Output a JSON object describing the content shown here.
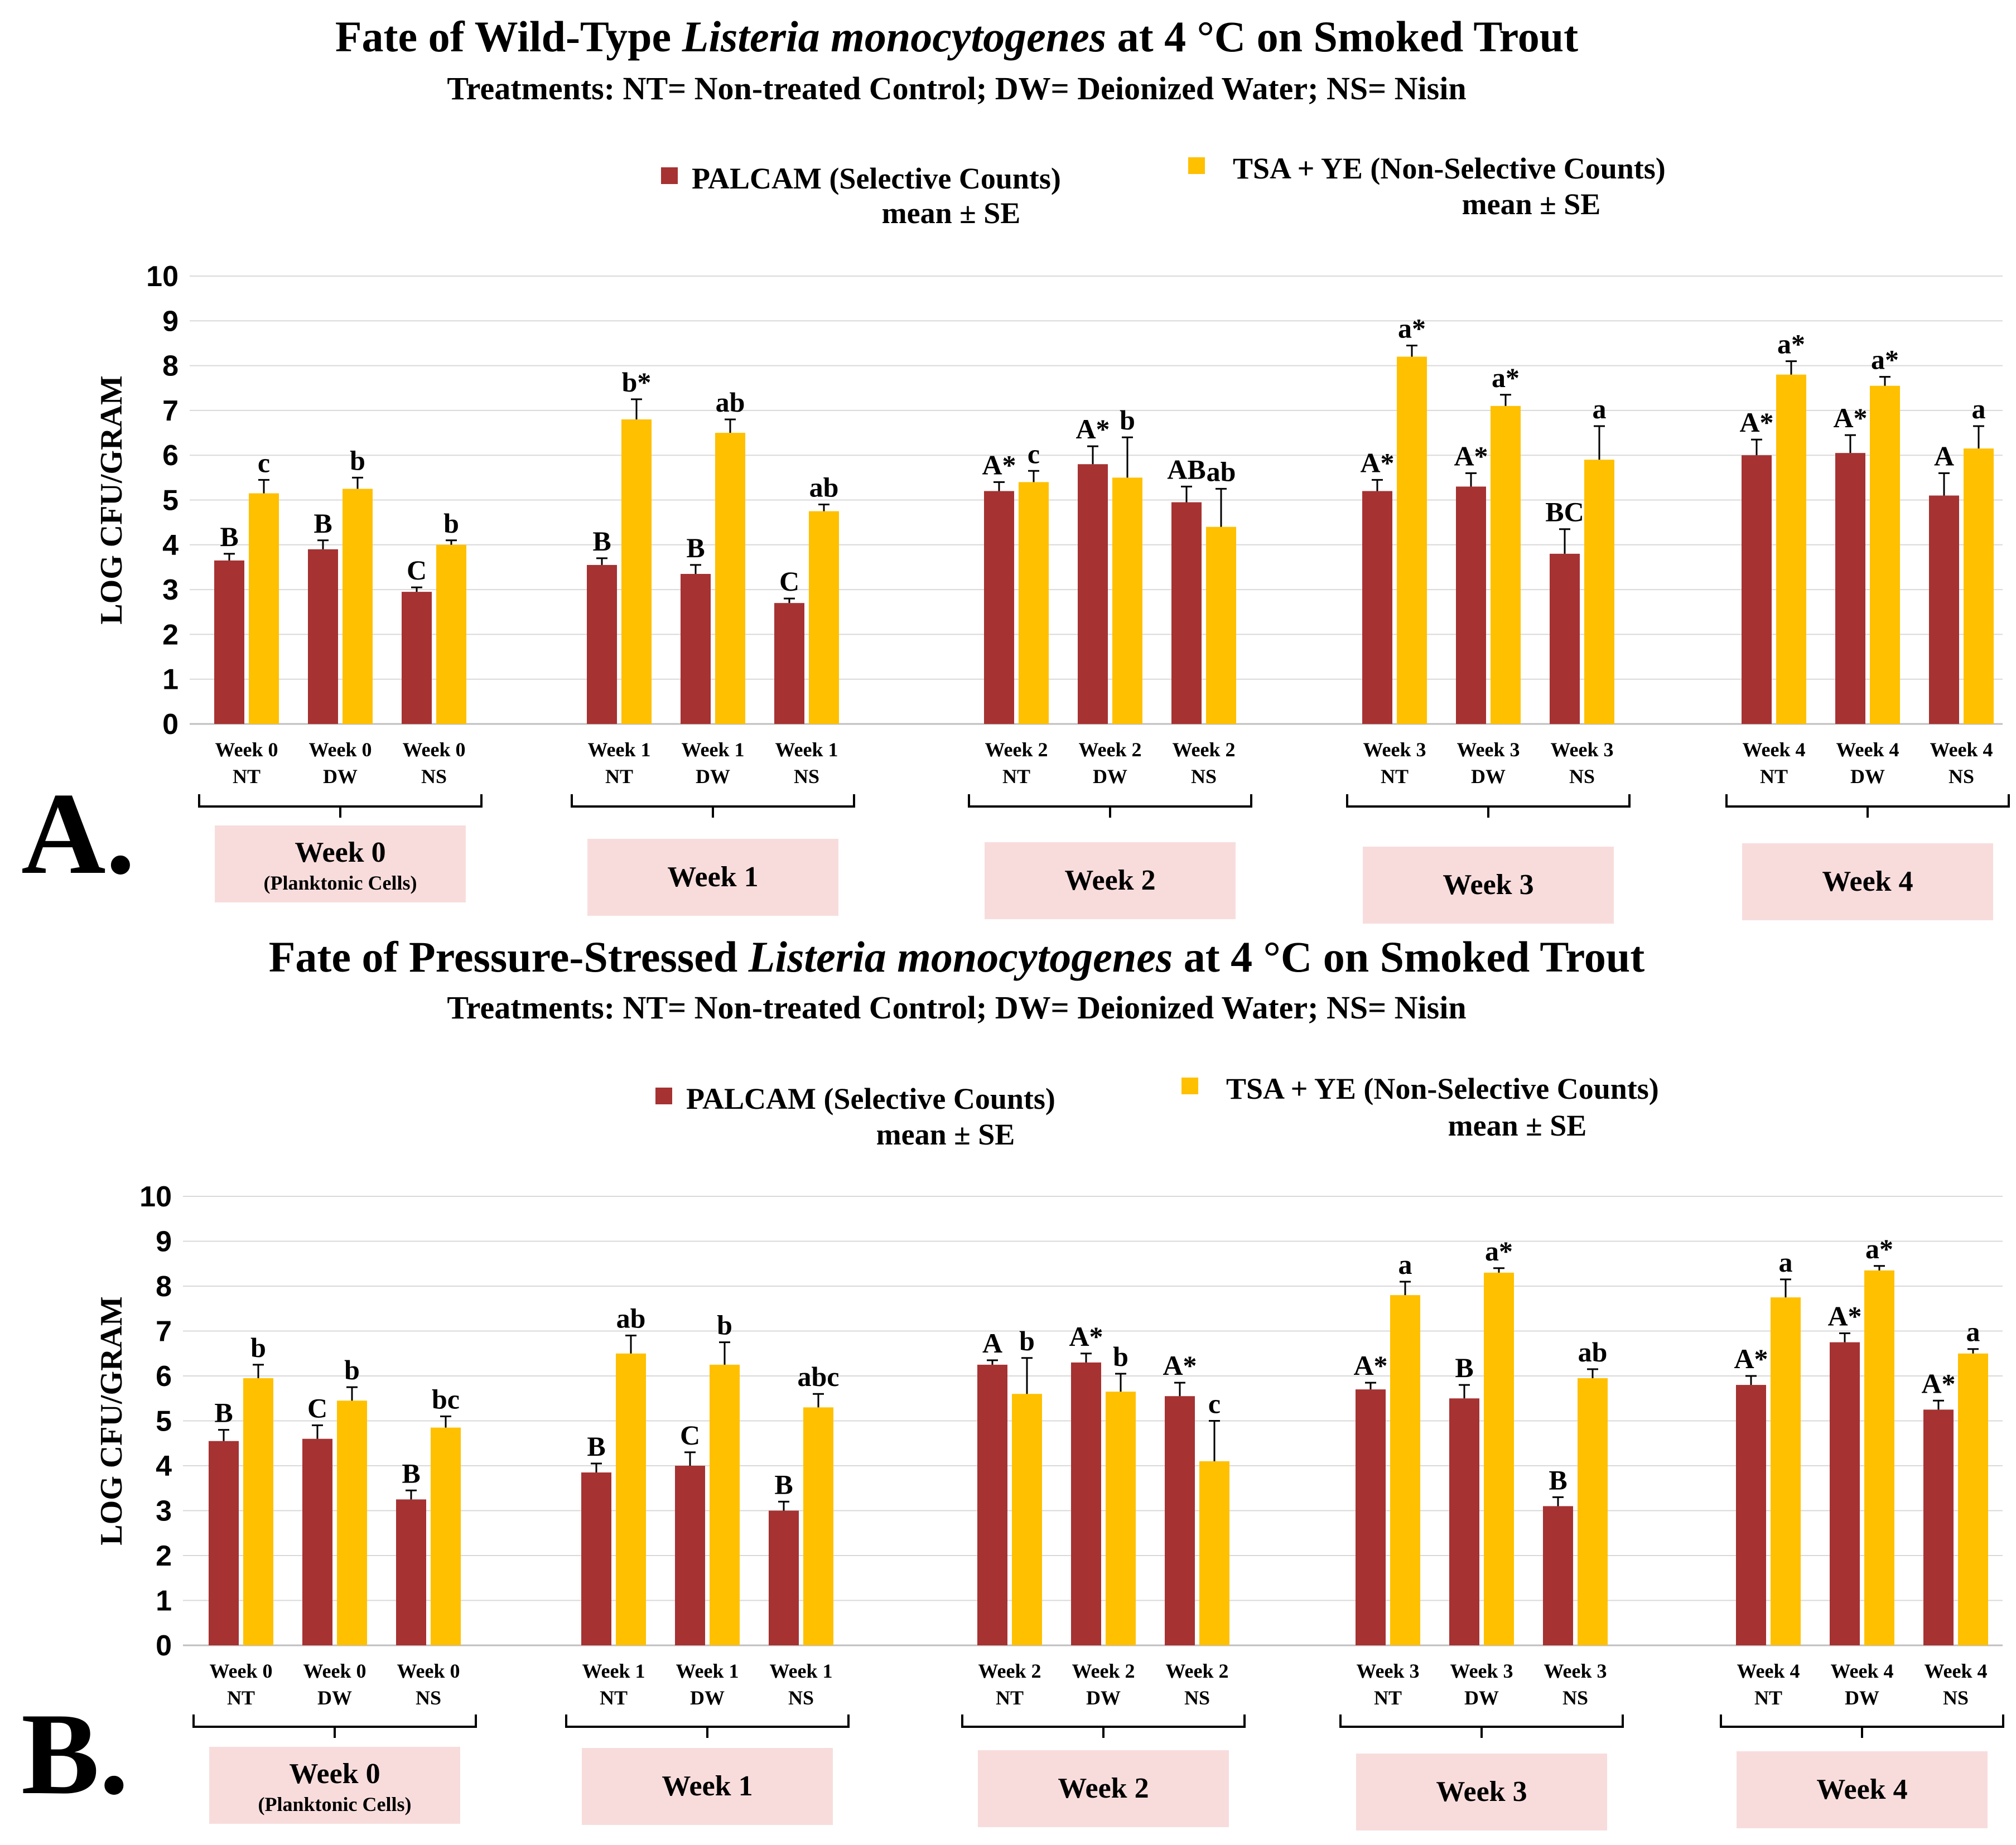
{
  "colors": {
    "palcam": "#A63232",
    "tsa": "#FFC000",
    "week_box": "#F8DCDC",
    "grid": "#D9D9D9"
  },
  "chart_data": [
    {
      "type": "bar",
      "panel": "A.",
      "title_prefix": "Fate of Wild-Type ",
      "title_italic": "Listeria monocytogenes",
      "title_suffix": " at 4 °C on Smoked Trout",
      "subtitle": "Treatments: NT= Non-treated Control; DW= Deionized Water; NS= Nisin",
      "ylabel": "LOG CFU/GRAM",
      "ylim": [
        0,
        10
      ],
      "yticks": [
        "0",
        "1",
        "2",
        "3",
        "4",
        "5",
        "6",
        "7",
        "8",
        "9",
        "10"
      ],
      "legend": [
        {
          "name": "PALCAM (Selective Counts)",
          "sub": "mean ± SE"
        },
        {
          "name": "TSA + YE (Non-Selective Counts)",
          "sub": "mean ± SE"
        }
      ],
      "groups": [
        {
          "week": "Week 0",
          "note": "(Planktonic Cells)",
          "items": [
            {
              "line1": "Week 0",
              "line2": "NT",
              "palcam": 3.65,
              "palcam_se": 0.15,
              "palcam_sig": "B",
              "tsa": 5.15,
              "tsa_se": 0.3,
              "tsa_sig": "c"
            },
            {
              "line1": "Week 0",
              "line2": "DW",
              "palcam": 3.9,
              "palcam_se": 0.2,
              "palcam_sig": "B",
              "tsa": 5.25,
              "tsa_se": 0.25,
              "tsa_sig": "b"
            },
            {
              "line1": "Week 0",
              "line2": "NS",
              "palcam": 2.95,
              "palcam_se": 0.1,
              "palcam_sig": "C",
              "tsa": 4.0,
              "tsa_se": 0.1,
              "tsa_sig": "b"
            }
          ]
        },
        {
          "week": "Week 1",
          "note": "",
          "items": [
            {
              "line1": "Week 1",
              "line2": "NT",
              "palcam": 3.55,
              "palcam_se": 0.15,
              "palcam_sig": "B",
              "tsa": 6.8,
              "tsa_se": 0.45,
              "tsa_sig": "b*"
            },
            {
              "line1": "Week 1",
              "line2": "DW",
              "palcam": 3.35,
              "palcam_se": 0.2,
              "palcam_sig": "B",
              "tsa": 6.5,
              "tsa_se": 0.3,
              "tsa_sig": "ab"
            },
            {
              "line1": "Week 1",
              "line2": "NS",
              "palcam": 2.7,
              "palcam_se": 0.1,
              "palcam_sig": "C",
              "tsa": 4.75,
              "tsa_se": 0.15,
              "tsa_sig": "ab"
            }
          ]
        },
        {
          "week": "Week 2",
          "note": "",
          "items": [
            {
              "line1": "Week 2",
              "line2": "NT",
              "palcam": 5.2,
              "palcam_se": 0.2,
              "palcam_sig": "A*",
              "tsa": 5.4,
              "tsa_se": 0.25,
              "tsa_sig": "c"
            },
            {
              "line1": "Week 2",
              "line2": "DW",
              "palcam": 5.8,
              "palcam_se": 0.4,
              "palcam_sig": "A*",
              "tsa": 5.5,
              "tsa_se": 0.9,
              "tsa_sig": "b"
            },
            {
              "line1": "Week 2",
              "line2": "NS",
              "palcam": 4.95,
              "palcam_se": 0.35,
              "palcam_sig": "AB",
              "tsa": 4.4,
              "tsa_se": 0.85,
              "tsa_sig": "ab"
            }
          ]
        },
        {
          "week": "Week 3",
          "note": "",
          "items": [
            {
              "line1": "Week 3",
              "line2": "NT",
              "palcam": 5.2,
              "palcam_se": 0.25,
              "palcam_sig": "A*",
              "tsa": 8.2,
              "tsa_se": 0.25,
              "tsa_sig": "a*"
            },
            {
              "line1": "Week 3",
              "line2": "DW",
              "palcam": 5.3,
              "palcam_se": 0.3,
              "palcam_sig": "A*",
              "tsa": 7.1,
              "tsa_se": 0.25,
              "tsa_sig": "a*"
            },
            {
              "line1": "Week 3",
              "line2": "NS",
              "palcam": 3.8,
              "palcam_se": 0.55,
              "palcam_sig": "BC",
              "tsa": 5.9,
              "tsa_se": 0.75,
              "tsa_sig": "a"
            }
          ]
        },
        {
          "week": "Week 4",
          "note": "",
          "items": [
            {
              "line1": "Week 4",
              "line2": "NT",
              "palcam": 6.0,
              "palcam_se": 0.35,
              "palcam_sig": "A*",
              "tsa": 7.8,
              "tsa_se": 0.3,
              "tsa_sig": "a*"
            },
            {
              "line1": "Week 4",
              "line2": "DW",
              "palcam": 6.05,
              "palcam_se": 0.4,
              "palcam_sig": "A*",
              "tsa": 7.55,
              "tsa_se": 0.2,
              "tsa_sig": "a*"
            },
            {
              "line1": "Week 4",
              "line2": "NS",
              "palcam": 5.1,
              "palcam_se": 0.5,
              "palcam_sig": "A",
              "tsa": 6.15,
              "tsa_se": 0.5,
              "tsa_sig": "a"
            }
          ]
        }
      ]
    },
    {
      "type": "bar",
      "panel": "B.",
      "title_prefix": "Fate of Pressure-Stressed ",
      "title_italic": "Listeria monocytogenes",
      "title_suffix": " at 4 °C on Smoked Trout",
      "subtitle": "Treatments: NT= Non-treated Control; DW= Deionized Water; NS= Nisin",
      "ylabel": "LOG CFU/GRAM",
      "ylim": [
        0,
        10
      ],
      "yticks": [
        "0",
        "1",
        "2",
        "3",
        "4",
        "5",
        "6",
        "7",
        "8",
        "9",
        "10"
      ],
      "legend": [
        {
          "name": "PALCAM (Selective Counts)",
          "sub": "mean ± SE"
        },
        {
          "name": "TSA + YE (Non-Selective Counts)",
          "sub": "mean ± SE"
        }
      ],
      "groups": [
        {
          "week": "Week 0",
          "note": "(Planktonic Cells)",
          "items": [
            {
              "line1": "Week 0",
              "line2": "NT",
              "palcam": 4.55,
              "palcam_se": 0.25,
              "palcam_sig": "B",
              "tsa": 5.95,
              "tsa_se": 0.3,
              "tsa_sig": "b"
            },
            {
              "line1": "Week 0",
              "line2": "DW",
              "palcam": 4.6,
              "palcam_se": 0.3,
              "palcam_sig": "C",
              "tsa": 5.45,
              "tsa_se": 0.3,
              "tsa_sig": "b"
            },
            {
              "line1": "Week 0",
              "line2": "NS",
              "palcam": 3.25,
              "palcam_se": 0.2,
              "palcam_sig": "B",
              "tsa": 4.85,
              "tsa_se": 0.25,
              "tsa_sig": "bc"
            }
          ]
        },
        {
          "week": "Week 1",
          "note": "",
          "items": [
            {
              "line1": "Week 1",
              "line2": "NT",
              "palcam": 3.85,
              "palcam_se": 0.2,
              "palcam_sig": "B",
              "tsa": 6.5,
              "tsa_se": 0.4,
              "tsa_sig": "ab"
            },
            {
              "line1": "Week 1",
              "line2": "DW",
              "palcam": 4.0,
              "palcam_se": 0.3,
              "palcam_sig": "C",
              "tsa": 6.25,
              "tsa_se": 0.5,
              "tsa_sig": "b"
            },
            {
              "line1": "Week 1",
              "line2": "NS",
              "palcam": 3.0,
              "palcam_se": 0.2,
              "palcam_sig": "B",
              "tsa": 5.3,
              "tsa_se": 0.3,
              "tsa_sig": "abc"
            }
          ]
        },
        {
          "week": "Week 2",
          "note": "",
          "items": [
            {
              "line1": "Week 2",
              "line2": "NT",
              "palcam": 6.25,
              "palcam_se": 0.1,
              "palcam_sig": "A",
              "tsa": 5.6,
              "tsa_se": 0.8,
              "tsa_sig": "b"
            },
            {
              "line1": "Week 2",
              "line2": "DW",
              "palcam": 6.3,
              "palcam_se": 0.2,
              "palcam_sig": "A*",
              "tsa": 5.65,
              "tsa_se": 0.4,
              "tsa_sig": "b"
            },
            {
              "line1": "Week 2",
              "line2": "NS",
              "palcam": 5.55,
              "palcam_se": 0.3,
              "palcam_sig": "A*",
              "tsa": 4.1,
              "tsa_se": 0.9,
              "tsa_sig": "c"
            }
          ]
        },
        {
          "week": "Week 3",
          "note": "",
          "items": [
            {
              "line1": "Week 3",
              "line2": "NT",
              "palcam": 5.7,
              "palcam_se": 0.15,
              "palcam_sig": "A*",
              "tsa": 7.8,
              "tsa_se": 0.3,
              "tsa_sig": "a"
            },
            {
              "line1": "Week 3",
              "line2": "DW",
              "palcam": 5.5,
              "palcam_se": 0.3,
              "palcam_sig": "B",
              "tsa": 8.3,
              "tsa_se": 0.1,
              "tsa_sig": "a*"
            },
            {
              "line1": "Week 3",
              "line2": "NS",
              "palcam": 3.1,
              "palcam_se": 0.2,
              "palcam_sig": "B",
              "tsa": 5.95,
              "tsa_se": 0.2,
              "tsa_sig": "ab"
            }
          ]
        },
        {
          "week": "Week 4",
          "note": "",
          "items": [
            {
              "line1": "Week 4",
              "line2": "NT",
              "palcam": 5.8,
              "palcam_se": 0.2,
              "palcam_sig": "A*",
              "tsa": 7.75,
              "tsa_se": 0.4,
              "tsa_sig": "a"
            },
            {
              "line1": "Week 4",
              "line2": "DW",
              "palcam": 6.75,
              "palcam_se": 0.2,
              "palcam_sig": "A*",
              "tsa": 8.35,
              "tsa_se": 0.1,
              "tsa_sig": "a*"
            },
            {
              "line1": "Week 4",
              "line2": "NS",
              "palcam": 5.25,
              "palcam_se": 0.2,
              "palcam_sig": "A*",
              "tsa": 6.5,
              "tsa_se": 0.1,
              "tsa_sig": "a"
            }
          ]
        }
      ]
    }
  ]
}
